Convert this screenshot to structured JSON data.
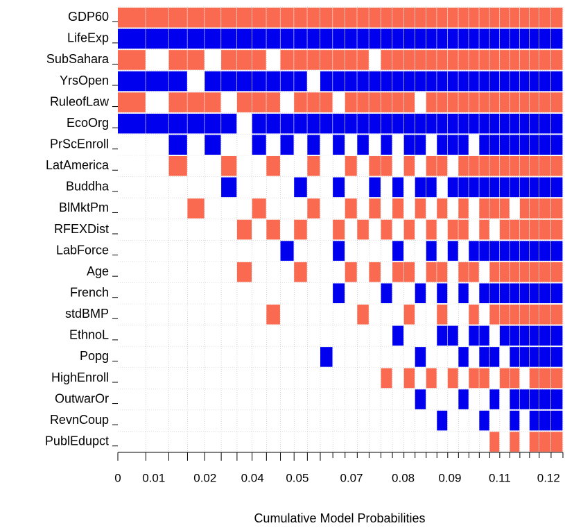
{
  "chart_data": {
    "type": "image",
    "xlabel": "Cumulative Model Probabilities",
    "variables": [
      "GDP60",
      "LifeExp",
      "SubSahara",
      "YrsOpen",
      "RuleofLaw",
      "EcoOrg",
      "PrScEnroll",
      "LatAmerica",
      "Buddha",
      "BlMktPm",
      "RFEXDist",
      "LabForce",
      "Age",
      "French",
      "stdBMP",
      "EthnoL",
      "Popg",
      "HighEnroll",
      "OutwarOr",
      "RevnCoup",
      "PublEdupct"
    ],
    "positive_color": "#0000ee",
    "negative_color": "#f96a50",
    "xlim": [
      0,
      0.124
    ],
    "xticks": [
      0,
      {
        "value": 0.01,
        "label": "0.01"
      },
      {
        "value": 0.0243,
        "label": "0.02"
      },
      {
        "value": 0.0375,
        "label": "0.04"
      },
      {
        "value": 0.05,
        "label": "0.05"
      },
      {
        "value": 0.0651,
        "label": "0.07"
      },
      {
        "value": 0.0795,
        "label": "0.08"
      },
      {
        "value": 0.0925,
        "label": "0.09"
      },
      {
        "value": 0.1064,
        "label": "0.11"
      },
      {
        "value": 0.12,
        "label": "0.12"
      }
    ],
    "models": [
      {
        "prob": 0.0078,
        "inclusion": [
          -1,
          1,
          -1,
          1,
          -1,
          1,
          0,
          0,
          0,
          0,
          0,
          0,
          0,
          0,
          0,
          0,
          0,
          0,
          0,
          0,
          0
        ]
      },
      {
        "prob": 0.0064,
        "inclusion": [
          -1,
          1,
          0,
          1,
          0,
          1,
          0,
          0,
          0,
          0,
          0,
          0,
          0,
          0,
          0,
          0,
          0,
          0,
          0,
          0,
          0
        ]
      },
      {
        "prob": 0.0052,
        "inclusion": [
          -1,
          1,
          -1,
          1,
          -1,
          1,
          1,
          -1,
          0,
          0,
          0,
          0,
          0,
          0,
          0,
          0,
          0,
          0,
          0,
          0,
          0
        ]
      },
      {
        "prob": 0.0048,
        "inclusion": [
          -1,
          1,
          -1,
          0,
          -1,
          1,
          0,
          0,
          0,
          -1,
          0,
          0,
          0,
          0,
          0,
          0,
          0,
          0,
          0,
          0,
          0
        ]
      },
      {
        "prob": 0.0046,
        "inclusion": [
          -1,
          1,
          0,
          1,
          -1,
          1,
          1,
          0,
          0,
          0,
          0,
          0,
          0,
          0,
          0,
          0,
          0,
          0,
          0,
          0,
          0
        ]
      },
      {
        "prob": 0.0044,
        "inclusion": [
          -1,
          1,
          -1,
          1,
          0,
          1,
          0,
          -1,
          1,
          0,
          0,
          0,
          0,
          0,
          0,
          0,
          0,
          0,
          0,
          0,
          0
        ]
      },
      {
        "prob": 0.0042,
        "inclusion": [
          -1,
          1,
          -1,
          1,
          -1,
          0,
          0,
          0,
          0,
          0,
          -1,
          0,
          -1,
          0,
          0,
          0,
          0,
          0,
          0,
          0,
          0
        ]
      },
      {
        "prob": 0.004,
        "inclusion": [
          -1,
          1,
          -1,
          1,
          -1,
          1,
          1,
          0,
          0,
          -1,
          0,
          0,
          0,
          0,
          0,
          0,
          0,
          0,
          0,
          0,
          0
        ]
      },
      {
        "prob": 0.0039,
        "inclusion": [
          -1,
          1,
          0,
          1,
          -1,
          1,
          0,
          -1,
          0,
          0,
          -1,
          0,
          0,
          0,
          -1,
          0,
          0,
          0,
          0,
          0,
          0
        ]
      },
      {
        "prob": 0.0038,
        "inclusion": [
          -1,
          1,
          -1,
          1,
          0,
          1,
          1,
          0,
          0,
          0,
          0,
          1,
          0,
          0,
          0,
          0,
          0,
          0,
          0,
          0,
          0
        ]
      },
      {
        "prob": 0.0037,
        "inclusion": [
          -1,
          1,
          -1,
          1,
          -1,
          1,
          0,
          0,
          1,
          0,
          -1,
          0,
          -1,
          0,
          0,
          0,
          0,
          0,
          0,
          0,
          0
        ]
      },
      {
        "prob": 0.0036,
        "inclusion": [
          -1,
          1,
          -1,
          0,
          -1,
          1,
          1,
          -1,
          0,
          -1,
          0,
          0,
          0,
          0,
          0,
          0,
          0,
          0,
          0,
          0,
          0
        ]
      },
      {
        "prob": 0.0035,
        "inclusion": [
          -1,
          1,
          -1,
          1,
          -1,
          1,
          0,
          0,
          0,
          0,
          0,
          0,
          0,
          0,
          0,
          0,
          1,
          0,
          0,
          0,
          0
        ]
      },
      {
        "prob": 0.0034,
        "inclusion": [
          -1,
          1,
          -1,
          1,
          0,
          1,
          1,
          0,
          1,
          0,
          -1,
          1,
          0,
          1,
          0,
          0,
          0,
          0,
          0,
          0,
          0
        ]
      },
      {
        "prob": 0.0034,
        "inclusion": [
          -1,
          1,
          -1,
          1,
          -1,
          1,
          0,
          -1,
          0,
          -1,
          0,
          0,
          -1,
          0,
          0,
          0,
          0,
          0,
          0,
          0,
          0
        ]
      },
      {
        "prob": 0.0033,
        "inclusion": [
          -1,
          1,
          -1,
          1,
          -1,
          1,
          1,
          0,
          0,
          0,
          -1,
          0,
          0,
          0,
          -1,
          0,
          0,
          0,
          0,
          0,
          0
        ]
      },
      {
        "prob": 0.0033,
        "inclusion": [
          -1,
          1,
          0,
          1,
          -1,
          1,
          0,
          -1,
          1,
          -1,
          0,
          0,
          -1,
          0,
          0,
          0,
          0,
          0,
          0,
          0,
          0
        ]
      },
      {
        "prob": 0.0032,
        "inclusion": [
          -1,
          1,
          -1,
          1,
          -1,
          1,
          1,
          -1,
          0,
          0,
          -1,
          0,
          0,
          1,
          0,
          0,
          0,
          -1,
          0,
          0,
          0
        ]
      },
      {
        "prob": 0.0032,
        "inclusion": [
          -1,
          1,
          -1,
          1,
          -1,
          1,
          0,
          0,
          1,
          -1,
          0,
          1,
          -1,
          0,
          0,
          1,
          0,
          0,
          0,
          0,
          0
        ]
      },
      {
        "prob": 0.0031,
        "inclusion": [
          -1,
          1,
          -1,
          1,
          -1,
          1,
          1,
          -1,
          0,
          0,
          -1,
          0,
          -1,
          0,
          -1,
          0,
          0,
          -1,
          0,
          0,
          0
        ]
      },
      {
        "prob": 0.0031,
        "inclusion": [
          -1,
          1,
          -1,
          1,
          0,
          1,
          1,
          0,
          1,
          -1,
          0,
          0,
          0,
          1,
          0,
          0,
          1,
          0,
          1,
          0,
          0
        ]
      },
      {
        "prob": 0.003,
        "inclusion": [
          -1,
          1,
          -1,
          1,
          -1,
          1,
          0,
          -1,
          1,
          0,
          -1,
          1,
          -1,
          0,
          0,
          0,
          0,
          -1,
          0,
          0,
          0
        ]
      },
      {
        "prob": 0.003,
        "inclusion": [
          -1,
          1,
          -1,
          1,
          -1,
          1,
          1,
          -1,
          0,
          -1,
          0,
          0,
          -1,
          1,
          -1,
          1,
          0,
          0,
          0,
          1,
          0
        ]
      },
      {
        "prob": 0.003,
        "inclusion": [
          -1,
          1,
          -1,
          1,
          -1,
          1,
          1,
          0,
          1,
          0,
          -1,
          1,
          0,
          0,
          0,
          1,
          0,
          -1,
          0,
          0,
          0
        ]
      },
      {
        "prob": 0.0029,
        "inclusion": [
          -1,
          1,
          -1,
          1,
          -1,
          1,
          1,
          -1,
          1,
          -1,
          -1,
          0,
          -1,
          1,
          0,
          0,
          1,
          0,
          1,
          0,
          0
        ]
      },
      {
        "prob": 0.0029,
        "inclusion": [
          -1,
          1,
          -1,
          1,
          -1,
          1,
          0,
          -1,
          1,
          0,
          0,
          1,
          -1,
          0,
          -1,
          1,
          0,
          -1,
          0,
          0,
          0
        ]
      },
      {
        "prob": 0.0029,
        "inclusion": [
          -1,
          1,
          -1,
          1,
          -1,
          1,
          1,
          -1,
          1,
          -1,
          -1,
          1,
          0,
          1,
          0,
          1,
          1,
          -1,
          0,
          1,
          0
        ]
      },
      {
        "prob": 0.0028,
        "inclusion": [
          -1,
          1,
          -1,
          1,
          -1,
          1,
          1,
          -1,
          1,
          -1,
          0,
          1,
          -1,
          1,
          -1,
          0,
          1,
          0,
          1,
          0,
          -1
        ]
      },
      {
        "prob": 0.0028,
        "inclusion": [
          -1,
          1,
          -1,
          1,
          -1,
          1,
          1,
          -1,
          1,
          -1,
          -1,
          1,
          -1,
          1,
          -1,
          1,
          0,
          -1,
          0,
          0,
          0
        ]
      },
      {
        "prob": 0.0028,
        "inclusion": [
          -1,
          1,
          -1,
          1,
          -1,
          1,
          1,
          -1,
          1,
          0,
          -1,
          1,
          -1,
          1,
          -1,
          1,
          1,
          -1,
          1,
          1,
          -1
        ]
      },
      {
        "prob": 0.0027,
        "inclusion": [
          -1,
          1,
          -1,
          1,
          -1,
          1,
          1,
          -1,
          1,
          -1,
          -1,
          1,
          -1,
          1,
          -1,
          1,
          1,
          0,
          1,
          0,
          0
        ]
      },
      {
        "prob": 0.0027,
        "inclusion": [
          -1,
          1,
          -1,
          1,
          -1,
          1,
          1,
          -1,
          1,
          -1,
          -1,
          1,
          -1,
          1,
          -1,
          1,
          1,
          -1,
          1,
          1,
          -1
        ]
      },
      {
        "prob": 0.0033,
        "inclusion": [
          -1,
          1,
          -1,
          1,
          -1,
          1,
          1,
          -1,
          1,
          -1,
          -1,
          1,
          -1,
          1,
          -1,
          1,
          1,
          -1,
          1,
          1,
          -1
        ]
      },
      {
        "prob": 0.0033,
        "inclusion": [
          -1,
          1,
          -1,
          1,
          -1,
          1,
          1,
          -1,
          1,
          -1,
          -1,
          1,
          -1,
          1,
          -1,
          1,
          1,
          -1,
          1,
          1,
          -1
        ]
      }
    ]
  }
}
